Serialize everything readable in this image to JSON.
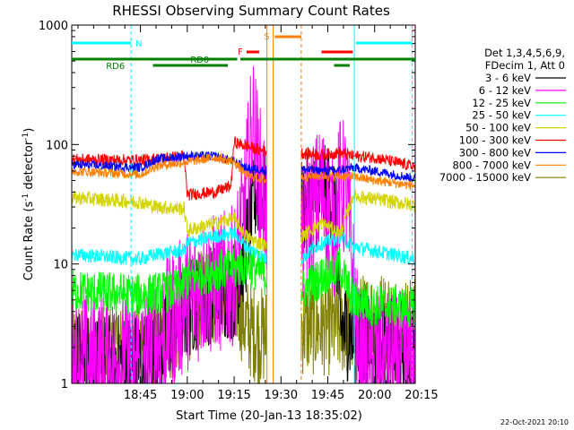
{
  "chart_data": {
    "type": "line",
    "title": "RHESSI Observing Summary Count Rates",
    "xlabel": "Start Time (20-Jan-13 18:35:02)",
    "ylabel_prefix": "Count Rate (s",
    "ylabel_sup1": "-1",
    "ylabel_mid": " detector",
    "ylabel_sup2": "-1",
    "ylabel_suffix": ")",
    "yscale": "log",
    "ylim": [
      1,
      1000
    ],
    "xlim_minutes": [
      -12,
      98
    ],
    "x_ticks": [
      {
        "min": 10,
        "label": "18:45"
      },
      {
        "min": 25,
        "label": "19:00"
      },
      {
        "min": 40,
        "label": "19:15"
      },
      {
        "min": 55,
        "label": "19:30"
      },
      {
        "min": 70,
        "label": "19:45"
      },
      {
        "min": 85,
        "label": "20:00"
      },
      {
        "min": 100,
        "label": "20:15"
      }
    ],
    "y_ticks": [
      {
        "value": 1,
        "label": "1"
      },
      {
        "value": 10,
        "label": "10"
      },
      {
        "value": 100,
        "label": "100"
      },
      {
        "value": 1000,
        "label": "1000"
      }
    ],
    "legend_header": [
      "Det 1,3,4,5,6,9,",
      "FDecim 1, Att 0"
    ],
    "series": [
      {
        "name": "3 - 6 keV",
        "color": "#000000"
      },
      {
        "name": "6 - 12 keV",
        "color": "#ff00ff"
      },
      {
        "name": "12 - 25 keV",
        "color": "#00ff00"
      },
      {
        "name": "25 - 50 keV",
        "color": "#00ffff"
      },
      {
        "name": "50 - 100 keV",
        "color": "#d4d400"
      },
      {
        "name": "100 - 300 keV",
        "color": "#ff0000"
      },
      {
        "name": "300 - 800 keV",
        "color": "#0000ff"
      },
      {
        "name": "800 - 7000 keV",
        "color": "#ff8000"
      },
      {
        "name": "7000 - 15000 keV",
        "color": "#808000"
      }
    ],
    "flag_labels": {
      "N": "N",
      "RD0": "RD0",
      "RD6": "RD6",
      "F": "F",
      "S": "S"
    },
    "footer_date": "22-Oct-2021 20:10"
  }
}
